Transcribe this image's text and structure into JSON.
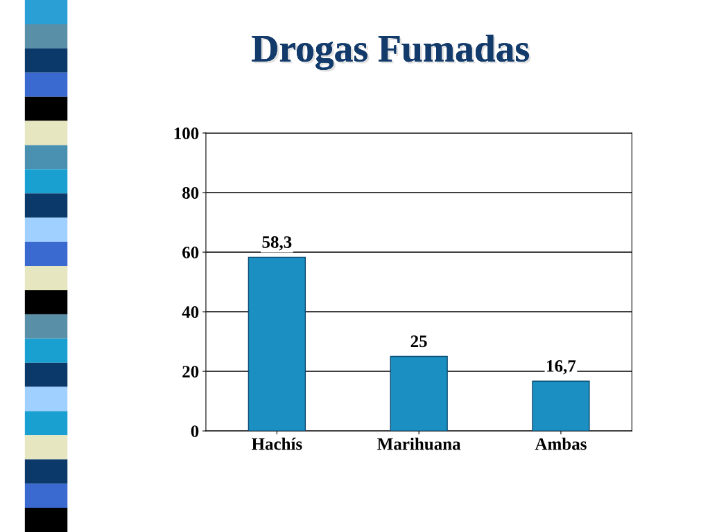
{
  "chart_data": {
    "type": "bar",
    "title": "Drogas Fumadas",
    "categories": [
      "Hachís",
      "Marihuana",
      "Ambas"
    ],
    "values": [
      58.3,
      25,
      16.7
    ],
    "value_labels": [
      "58,3",
      "25",
      "16,7"
    ],
    "color": "#1b8fc2",
    "ylim": [
      0,
      100
    ],
    "yticks": [
      0,
      20,
      40,
      60,
      80,
      100
    ],
    "grid": "y"
  }
}
